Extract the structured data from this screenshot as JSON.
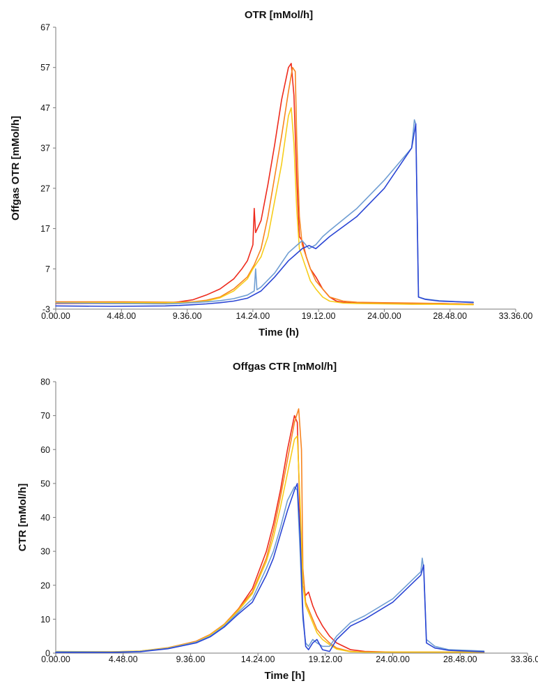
{
  "chart_data": [
    {
      "type": "line",
      "title": "OTR [mMol/h]",
      "xlabel": "Time (h)",
      "ylabel": "Offgas OTR [mMol/h]",
      "xlim": [
        0,
        33.6
      ],
      "ylim": [
        -3,
        67
      ],
      "x_ticks": [
        0,
        4.8,
        9.6,
        14.4,
        19.2,
        24.0,
        28.8,
        33.6
      ],
      "x_tick_labels": [
        "0.00.00",
        "4.48.00",
        "9.36.00",
        "14.24.00",
        "19.12.00",
        "24.00.00",
        "28.48.00",
        "33.36.00"
      ],
      "y_ticks": [
        -3,
        7,
        17,
        27,
        37,
        47,
        57,
        67
      ],
      "y_tick_labels": [
        "-3",
        "7",
        "17",
        "27",
        "37",
        "47",
        "57",
        "67"
      ],
      "grid": false,
      "series": [
        {
          "color": "#ee2a1c",
          "x": [
            0,
            3,
            6,
            8,
            9,
            10,
            11,
            12,
            13,
            13.6,
            14,
            14.4,
            14.5,
            14.6,
            15,
            15.5,
            16,
            16.5,
            17,
            17.2,
            17.4,
            17.6,
            17.8,
            18,
            18.3,
            18.6,
            19,
            19.5,
            20,
            20.5,
            21,
            22,
            24,
            26,
            28,
            30.5
          ],
          "y": [
            -1.6,
            -1.6,
            -1.6,
            -1.5,
            -1.2,
            -0.7,
            0.5,
            2,
            4.5,
            7,
            9,
            13,
            22,
            16,
            19,
            28,
            38,
            49,
            57,
            58,
            50,
            30,
            15,
            14,
            10,
            7,
            5,
            2,
            0,
            -1,
            -1.3,
            -1.5,
            -1.6,
            -1.6,
            -1.6,
            -1.8
          ]
        },
        {
          "color": "#f7841f",
          "x": [
            0,
            5,
            9,
            10,
            11,
            12,
            13,
            14,
            14.5,
            15,
            15.5,
            16,
            16.5,
            17,
            17.3,
            17.5,
            17.6,
            17.8,
            18,
            18.3,
            18.6,
            19,
            19.5,
            20,
            21,
            22,
            24,
            26,
            28,
            30.5
          ],
          "y": [
            -1.2,
            -1.2,
            -1.3,
            -1.2,
            -0.8,
            0,
            2,
            5,
            8,
            12,
            20,
            30,
            40,
            51,
            57,
            56,
            40,
            20,
            13,
            10,
            7,
            4,
            2,
            0,
            -1,
            -1.3,
            -1.4,
            -1.5,
            -1.6,
            -1.8
          ]
        },
        {
          "color": "#f7cd1a",
          "x": [
            0,
            5,
            9,
            10,
            11,
            12,
            13,
            14,
            14.4,
            15,
            15.5,
            16,
            16.5,
            17,
            17.2,
            17.4,
            17.6,
            17.8,
            18,
            18.3,
            18.6,
            19,
            19.5,
            20,
            21,
            22,
            24,
            26,
            28,
            30.5
          ],
          "y": [
            -1.4,
            -1.4,
            -1.4,
            -1.3,
            -1,
            -0.2,
            1.5,
            4.5,
            7,
            10,
            15,
            24,
            33,
            45,
            47,
            38,
            22,
            12,
            10,
            7,
            4,
            2,
            0,
            -1,
            -1.5,
            -1.6,
            -1.7,
            -1.8,
            -1.8,
            -1.9
          ]
        },
        {
          "color": "#6f9ed3",
          "x": [
            0,
            4,
            8,
            9,
            10,
            11,
            12,
            13,
            14,
            14.5,
            14.6,
            14.7,
            15,
            16,
            17,
            17.5,
            18,
            18.5,
            19,
            19.5,
            20,
            22,
            24,
            26,
            26.2,
            26.3,
            26.5,
            27,
            28,
            30.5
          ],
          "y": [
            -1.5,
            -1.6,
            -1.7,
            -1.6,
            -1.4,
            -1.2,
            -0.9,
            -0.4,
            0.5,
            1.5,
            7,
            1.8,
            2.5,
            6,
            11,
            12.5,
            14,
            12,
            13,
            15,
            16.5,
            22,
            29,
            37,
            44,
            43,
            0,
            -0.5,
            -0.9,
            -1.4
          ]
        },
        {
          "color": "#2a45d4",
          "x": [
            0,
            4,
            8,
            9,
            10,
            11,
            12,
            13,
            14,
            15,
            16,
            17,
            17.5,
            18,
            18.5,
            19,
            20,
            22,
            24,
            26,
            26.3,
            26.5,
            27,
            28,
            30.5
          ],
          "y": [
            -2.2,
            -2.3,
            -2.2,
            -2.1,
            -1.9,
            -1.7,
            -1.4,
            -1,
            -0.3,
            1.5,
            5,
            9,
            10.5,
            12,
            12.8,
            12,
            15,
            20,
            27,
            37,
            43,
            0,
            -0.6,
            -1,
            -1.3
          ]
        }
      ]
    },
    {
      "type": "line",
      "title": "Offgas CTR [mMol/h]",
      "xlabel": "Time [h]",
      "ylabel": "CTR [mMol/h]",
      "xlim": [
        0,
        33.6
      ],
      "ylim": [
        0,
        80
      ],
      "x_ticks": [
        0,
        4.8,
        9.6,
        14.4,
        19.2,
        24.0,
        28.8,
        33.6
      ],
      "x_tick_labels": [
        "0.00.00",
        "4.48.00",
        "9.36.00",
        "14.24.00",
        "19.12.00",
        "24.00.00",
        "28.48.00",
        "33.36.00"
      ],
      "y_ticks": [
        0,
        10,
        20,
        30,
        40,
        50,
        60,
        70,
        80
      ],
      "y_tick_labels": [
        "0",
        "10",
        "20",
        "30",
        "40",
        "50",
        "60",
        "70",
        "80"
      ],
      "grid": false,
      "series": [
        {
          "color": "#ee2a1c",
          "x": [
            0,
            4,
            6,
            8,
            10,
            11,
            12,
            13,
            14,
            15,
            15.5,
            16,
            16.5,
            17,
            17.2,
            17.4,
            17.6,
            17.8,
            18,
            18.3,
            18.6,
            19,
            19.5,
            20,
            21,
            22,
            24,
            26,
            28,
            30.5
          ],
          "y": [
            0.3,
            0.3,
            0.5,
            1.5,
            3.5,
            5.5,
            8.5,
            13,
            19,
            30,
            38,
            48,
            60,
            70,
            68,
            40,
            20,
            17,
            18,
            14,
            11,
            8,
            5,
            3,
            1,
            0.5,
            0.3,
            0.3,
            0.3,
            0.3
          ]
        },
        {
          "color": "#f7841f",
          "x": [
            0,
            4,
            6,
            8,
            10,
            11,
            12,
            13,
            14,
            15,
            15.5,
            16,
            16.5,
            17,
            17.3,
            17.5,
            17.6,
            17.8,
            18,
            18.3,
            18.6,
            19,
            19.5,
            20,
            21,
            22,
            24,
            26,
            28,
            30.5
          ],
          "y": [
            0.4,
            0.4,
            0.6,
            1.6,
            3.5,
            5.5,
            8.5,
            13,
            18,
            28,
            36,
            46,
            57,
            68,
            72,
            60,
            25,
            15,
            13,
            10,
            7,
            5,
            3,
            1.5,
            0.5,
            0.3,
            0.3,
            0.3,
            0.3,
            0.3
          ]
        },
        {
          "color": "#f7cd1a",
          "x": [
            0,
            4,
            6,
            8,
            10,
            11,
            12,
            13,
            14,
            15,
            15.5,
            16,
            16.5,
            17,
            17.2,
            17.4,
            17.6,
            17.8,
            18,
            18.3,
            18.6,
            19,
            19.5,
            20,
            21,
            22,
            24,
            26,
            28,
            30.5
          ],
          "y": [
            0.5,
            0.4,
            0.6,
            1.5,
            3.3,
            5.3,
            8.3,
            12.5,
            17.5,
            27,
            34,
            43,
            53,
            63,
            64,
            45,
            20,
            14,
            12,
            9,
            6,
            4,
            2.5,
            1.2,
            0.4,
            0.3,
            0.3,
            0.3,
            0.3,
            0.3
          ]
        },
        {
          "color": "#6f9ed3",
          "x": [
            0,
            4,
            6,
            8,
            10,
            11,
            12,
            13,
            14,
            15,
            15.5,
            16,
            16.5,
            17,
            17.2,
            17.4,
            17.6,
            17.8,
            18,
            18.3,
            18.6,
            19,
            19.5,
            20,
            21,
            22,
            24,
            26,
            26.1,
            26.2,
            26.4,
            27,
            28,
            30.5
          ],
          "y": [
            0.4,
            0.3,
            0.5,
            1.4,
            3.2,
            5,
            8,
            12,
            16,
            25,
            30,
            37,
            45,
            49,
            48,
            30,
            10,
            3,
            2,
            4,
            3,
            2,
            2,
            5,
            9,
            11,
            16,
            24,
            28,
            25,
            4,
            2,
            1,
            0.6
          ]
        },
        {
          "color": "#2a45d4",
          "x": [
            0,
            4,
            6,
            8,
            10,
            11,
            12,
            13,
            14,
            15,
            15.5,
            16,
            16.5,
            17,
            17.2,
            17.4,
            17.6,
            17.8,
            18,
            18.3,
            18.6,
            19,
            19.5,
            20,
            21,
            22,
            24,
            26,
            26.2,
            26.4,
            27,
            28,
            30.5
          ],
          "y": [
            0.2,
            0.2,
            0.4,
            1.3,
            3,
            4.8,
            7.7,
            11.5,
            15,
            23,
            28,
            35,
            42,
            48,
            50,
            35,
            12,
            2,
            1,
            3,
            4,
            1,
            0.5,
            4,
            8,
            10,
            15,
            23,
            26,
            3,
            1.5,
            0.8,
            0.4
          ]
        }
      ]
    }
  ]
}
